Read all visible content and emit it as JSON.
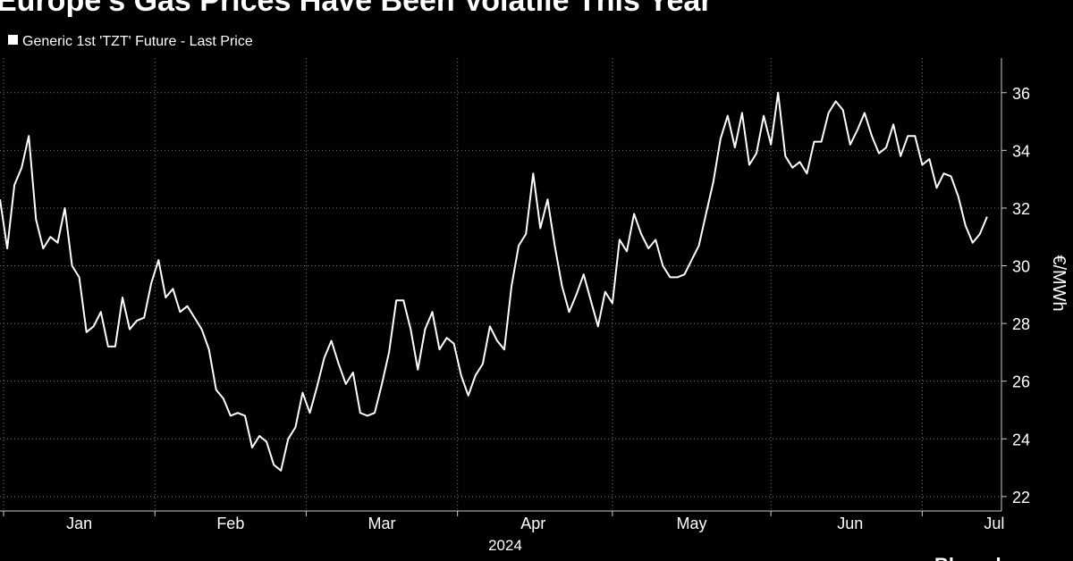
{
  "chart_data": {
    "type": "line",
    "title": "Europe's Gas Prices Have Been Volatile This Year",
    "x_axis_label": "2024",
    "y_axis_label": "€/MWh",
    "source": "Bloomberg",
    "series": [
      {
        "name": "Generic 1st 'TZT' Future - Last Price",
        "color": "#ffffff",
        "values": [
          32.3,
          30.6,
          32.8,
          33.4,
          34.5,
          31.6,
          30.6,
          31.0,
          30.8,
          32.0,
          30.0,
          29.6,
          27.7,
          27.9,
          28.4,
          27.2,
          27.2,
          28.9,
          27.8,
          28.1,
          28.2,
          29.4,
          30.2,
          28.9,
          29.2,
          28.4,
          28.6,
          28.2,
          27.8,
          27.1,
          25.7,
          25.4,
          24.8,
          24.9,
          24.8,
          23.7,
          24.1,
          23.9,
          23.1,
          22.9,
          24.0,
          24.4,
          25.6,
          24.9,
          25.8,
          26.8,
          27.4,
          26.6,
          25.9,
          26.3,
          24.9,
          24.8,
          24.9,
          25.9,
          27.0,
          28.8,
          28.8,
          27.8,
          26.4,
          27.8,
          28.4,
          27.1,
          27.5,
          27.3,
          26.2,
          25.5,
          26.2,
          26.6,
          27.9,
          27.4,
          27.1,
          29.3,
          30.7,
          31.1,
          33.2,
          31.3,
          32.3,
          30.7,
          29.3,
          28.4,
          29.0,
          29.7,
          28.8,
          27.9,
          29.1,
          28.7,
          30.9,
          30.5,
          31.8,
          31.1,
          30.6,
          30.9,
          30.0,
          29.6,
          29.6,
          29.7,
          30.2,
          30.7,
          31.8,
          32.9,
          34.4,
          35.2,
          34.1,
          35.3,
          33.5,
          33.9,
          35.2,
          34.2,
          36.0,
          33.8,
          33.4,
          33.6,
          33.2,
          34.3,
          34.3,
          35.3,
          35.7,
          35.4,
          34.2,
          34.7,
          35.3,
          34.5,
          33.9,
          34.1,
          34.9,
          33.8,
          34.5,
          34.5,
          33.5,
          33.7,
          32.7,
          33.2,
          33.1,
          32.4,
          31.4,
          30.8,
          31.1,
          31.7
        ]
      }
    ],
    "xlim": [
      0,
      139
    ],
    "xticks": [
      {
        "value": 11,
        "label": "Jan"
      },
      {
        "value": 32,
        "label": "Feb"
      },
      {
        "value": 53,
        "label": "Mar"
      },
      {
        "value": 74,
        "label": "Apr"
      },
      {
        "value": 96,
        "label": "May"
      },
      {
        "value": 118,
        "label": "Jun"
      },
      {
        "value": 138,
        "label": "Jul"
      }
    ],
    "ylim": [
      21.5,
      37.2
    ],
    "yticks": [
      22,
      24,
      26,
      28,
      30,
      32,
      34,
      36
    ],
    "grid": true,
    "y_axis_side": "right"
  }
}
